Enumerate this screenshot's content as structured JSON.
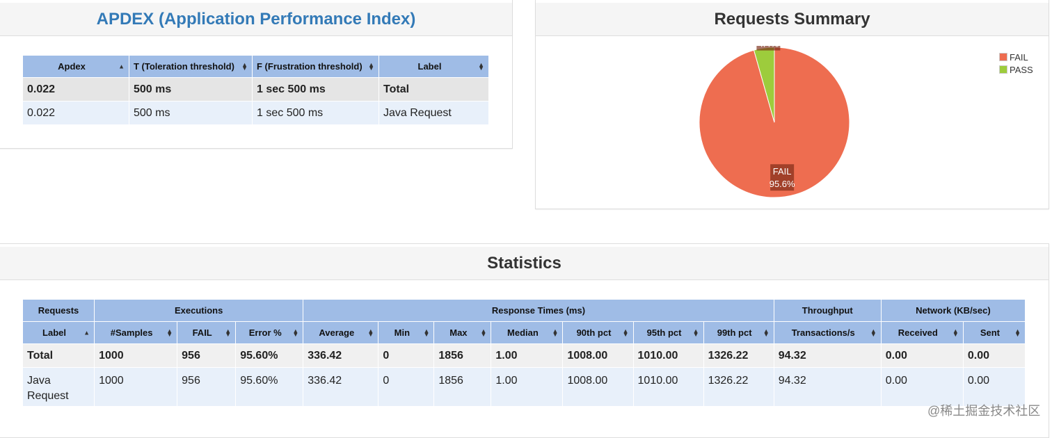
{
  "apdex": {
    "title": "APDEX (Application Performance Index)",
    "columns": [
      "Apdex",
      "T (Toleration threshold)",
      "F (Frustration threshold)",
      "Label"
    ],
    "rows": [
      {
        "apdex": "0.022",
        "t": "500 ms",
        "f": "1 sec 500 ms",
        "label": "Total"
      },
      {
        "apdex": "0.022",
        "t": "500 ms",
        "f": "1 sec 500 ms",
        "label": "Java Request"
      }
    ]
  },
  "summary": {
    "title": "Requests Summary",
    "legend": [
      {
        "label": "FAIL",
        "color": "#ee6d50"
      },
      {
        "label": "PASS",
        "color": "#9dcc3c"
      }
    ],
    "chart_data": {
      "type": "pie",
      "slices": [
        {
          "label": "FAIL",
          "value": 95.6,
          "display": "95.6%",
          "color": "#ee6d50"
        },
        {
          "label": "PASS",
          "value": 4.4,
          "display": "4.4%",
          "color": "#9dcc3c"
        }
      ]
    }
  },
  "statistics": {
    "title": "Statistics",
    "groups": [
      "Requests",
      "Executions",
      "Response Times (ms)",
      "Throughput",
      "Network (KB/sec)"
    ],
    "columns": [
      "Label",
      "#Samples",
      "FAIL",
      "Error %",
      "Average",
      "Min",
      "Max",
      "Median",
      "90th pct",
      "95th pct",
      "99th pct",
      "Transactions/s",
      "Received",
      "Sent"
    ],
    "rows": [
      [
        "Total",
        "1000",
        "956",
        "95.60%",
        "336.42",
        "0",
        "1856",
        "1.00",
        "1008.00",
        "1010.00",
        "1326.22",
        "94.32",
        "0.00",
        "0.00"
      ],
      [
        "Java Request",
        "1000",
        "956",
        "95.60%",
        "336.42",
        "0",
        "1856",
        "1.00",
        "1008.00",
        "1010.00",
        "1326.22",
        "94.32",
        "0.00",
        "0.00"
      ]
    ]
  },
  "watermark": "@稀土掘金技术社区"
}
